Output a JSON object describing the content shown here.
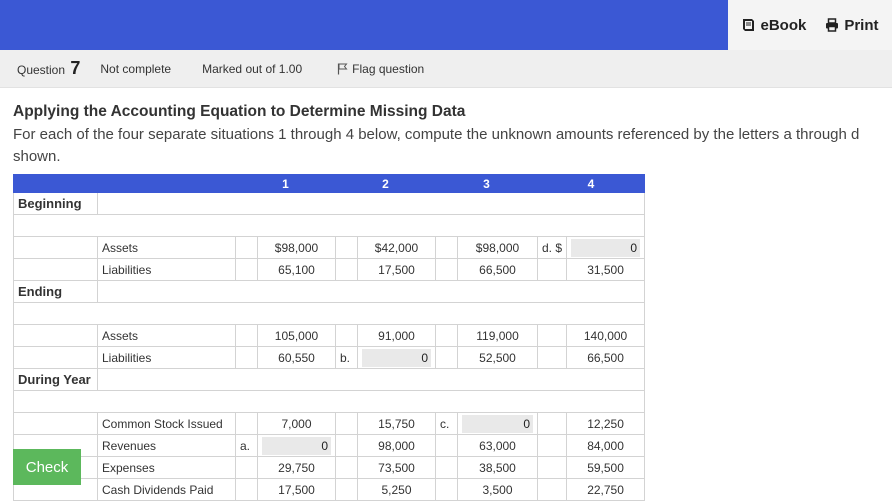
{
  "toolbar": {
    "ebook_label": "eBook",
    "print_label": "Print"
  },
  "question_bar": {
    "question_prefix": "Question",
    "question_number": "7",
    "status": "Not complete",
    "marks": "Marked out of 1.00",
    "flag_label": "Flag question"
  },
  "content": {
    "title": "Applying the Accounting Equation to Determine Missing Data",
    "description": "For each of the four separate situations 1 through 4 below, compute the unknown amounts referenced by the letters a through d shown."
  },
  "table": {
    "headers": [
      "1",
      "2",
      "3",
      "4"
    ],
    "sections": {
      "beginning": "Beginning",
      "ending": "Ending",
      "during": "During Year"
    },
    "rows": {
      "b_assets": {
        "label": "Assets",
        "c1": "$98,000",
        "c2": "$42,000",
        "c3": "$98,000",
        "letter4": "d.",
        "prefix4": "$",
        "input4": "0"
      },
      "b_liab": {
        "label": "Liabilities",
        "c1": "65,100",
        "c2": "17,500",
        "c3": "66,500",
        "c4": "31,500"
      },
      "e_assets": {
        "label": "Assets",
        "c1": "105,000",
        "c2": "91,000",
        "c3": "119,000",
        "c4": "140,000"
      },
      "e_liab": {
        "label": "Liabilities",
        "c1": "60,550",
        "letter2": "b.",
        "input2": "0",
        "c3": "52,500",
        "c4": "66,500"
      },
      "stock": {
        "label": "Common Stock Issued",
        "c1": "7,000",
        "c2": "15,750",
        "letter3": "c.",
        "input3": "0",
        "c4": "12,250"
      },
      "revenues": {
        "label": "Revenues",
        "letter1": "a.",
        "input1": "0",
        "c2": "98,000",
        "c3": "63,000",
        "c4": "84,000"
      },
      "expenses": {
        "label": "Expenses",
        "c1": "29,750",
        "c2": "73,500",
        "c3": "38,500",
        "c4": "59,500"
      },
      "dividends": {
        "label": "Cash Dividends Paid",
        "c1": "17,500",
        "c2": "5,250",
        "c3": "3,500",
        "c4": "22,750"
      }
    }
  },
  "check_label": "Check"
}
